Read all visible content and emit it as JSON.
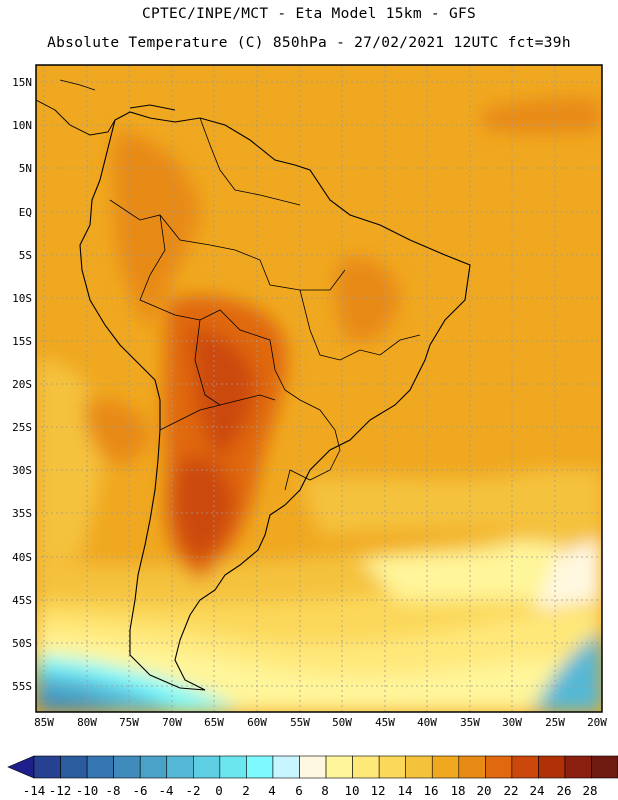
{
  "header": {
    "line1": "CPTEC/INPE/MCT -  Eta Model 15km - GFS",
    "line2": "Absolute Temperature (C) 850hPa - 27/02/2021 12UTC fct=39h"
  },
  "map": {
    "lat_labels": [
      "15N",
      "10N",
      "5N",
      "EQ",
      "5S",
      "10S",
      "15S",
      "20S",
      "25S",
      "30S",
      "35S",
      "40S",
      "45S",
      "50S",
      "55S"
    ],
    "lon_labels": [
      "85W",
      "80W",
      "75W",
      "70W",
      "65W",
      "60W",
      "55W",
      "50W",
      "45W",
      "40W",
      "35W",
      "30W",
      "25W",
      "20W"
    ]
  },
  "colorbar": {
    "labels": [
      "-14",
      "-12",
      "-10",
      "-8",
      "-6",
      "-4",
      "-2",
      "0",
      "2",
      "4",
      "6",
      "8",
      "10",
      "12",
      "14",
      "16",
      "18",
      "20",
      "22",
      "24",
      "26",
      "28"
    ],
    "low_color": "#1e1e8c",
    "high_color": "#960032",
    "colors": [
      "#25418f",
      "#2b5c9e",
      "#3576b2",
      "#3f8cbc",
      "#4aa2c8",
      "#55b8d6",
      "#5ecfe2",
      "#6ce6ee",
      "#7dfaff",
      "#c8f5ff",
      "#fff8e0",
      "#fff59a",
      "#ffe87a",
      "#fbd85a",
      "#f5c23c",
      "#f0a820",
      "#e88a16",
      "#e0680e",
      "#cc480a",
      "#b03008",
      "#8c2010",
      "#6e1a10"
    ]
  }
}
